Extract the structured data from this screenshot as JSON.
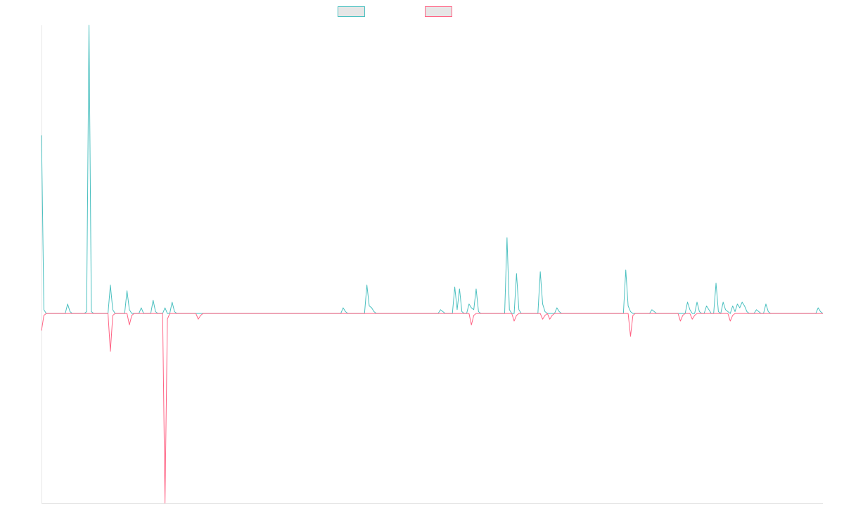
{
  "colors": {
    "series_a": "#4bc0c0",
    "series_b": "#ff6384",
    "axis": "#e6e6e6",
    "swatch_fill": "#e6e6e6"
  },
  "chart_data": {
    "type": "line",
    "title": "",
    "xlabel": "",
    "ylabel": "",
    "grid": false,
    "legend_placement": "top-center",
    "ylim": [
      -100,
      152
    ],
    "n_points": 330,
    "series": [
      {
        "color": "#4bc0c0",
        "points": [
          [
            0,
            94
          ],
          [
            1,
            2
          ],
          [
            11,
            5
          ],
          [
            12,
            1
          ],
          [
            19,
            1
          ],
          [
            20,
            152
          ],
          [
            21,
            1
          ],
          [
            29,
            15
          ],
          [
            30,
            2
          ],
          [
            36,
            12
          ],
          [
            37,
            2
          ],
          [
            42,
            3
          ],
          [
            47,
            7
          ],
          [
            48,
            1
          ],
          [
            52,
            3
          ],
          [
            55,
            6
          ],
          [
            56,
            1
          ],
          [
            127,
            3
          ],
          [
            128,
            1
          ],
          [
            137,
            15
          ],
          [
            138,
            4
          ],
          [
            139,
            3
          ],
          [
            140,
            1
          ],
          [
            168,
            2
          ],
          [
            169,
            1
          ],
          [
            174,
            14
          ],
          [
            175,
            2
          ],
          [
            176,
            13
          ],
          [
            177,
            1
          ],
          [
            180,
            5
          ],
          [
            181,
            3
          ],
          [
            182,
            2
          ],
          [
            183,
            13
          ],
          [
            184,
            1
          ],
          [
            196,
            40
          ],
          [
            197,
            2
          ],
          [
            200,
            21
          ],
          [
            201,
            2
          ],
          [
            210,
            22
          ],
          [
            211,
            5
          ],
          [
            212,
            1
          ],
          [
            217,
            3
          ],
          [
            218,
            1
          ],
          [
            246,
            23
          ],
          [
            247,
            4
          ],
          [
            248,
            1
          ],
          [
            257,
            2
          ],
          [
            258,
            1
          ],
          [
            272,
            6
          ],
          [
            273,
            2
          ],
          [
            276,
            6
          ],
          [
            277,
            1
          ],
          [
            280,
            4
          ],
          [
            281,
            2
          ],
          [
            284,
            16
          ],
          [
            285,
            1
          ],
          [
            287,
            6
          ],
          [
            288,
            2
          ],
          [
            289,
            1
          ],
          [
            291,
            4
          ],
          [
            292,
            1
          ],
          [
            293,
            5
          ],
          [
            294,
            3
          ],
          [
            295,
            6
          ],
          [
            296,
            4
          ],
          [
            297,
            1
          ],
          [
            301,
            2
          ],
          [
            302,
            1
          ],
          [
            305,
            5
          ],
          [
            306,
            1
          ],
          [
            327,
            3
          ],
          [
            328,
            1
          ]
        ]
      },
      {
        "color": "#ff6384",
        "points": [
          [
            0,
            -9
          ],
          [
            1,
            -1
          ],
          [
            29,
            -20
          ],
          [
            30,
            -1
          ],
          [
            37,
            -6
          ],
          [
            38,
            -1
          ],
          [
            52,
            -100
          ],
          [
            53,
            -3
          ],
          [
            66,
            -3
          ],
          [
            67,
            -1
          ],
          [
            181,
            -6
          ],
          [
            182,
            -1
          ],
          [
            199,
            -4
          ],
          [
            200,
            -1
          ],
          [
            211,
            -3
          ],
          [
            212,
            -1
          ],
          [
            214,
            -3
          ],
          [
            215,
            -1
          ],
          [
            248,
            -12
          ],
          [
            249,
            -1
          ],
          [
            269,
            -4
          ],
          [
            270,
            -1
          ],
          [
            274,
            -3
          ],
          [
            275,
            -1
          ],
          [
            290,
            -4
          ],
          [
            291,
            -1
          ]
        ]
      }
    ]
  }
}
